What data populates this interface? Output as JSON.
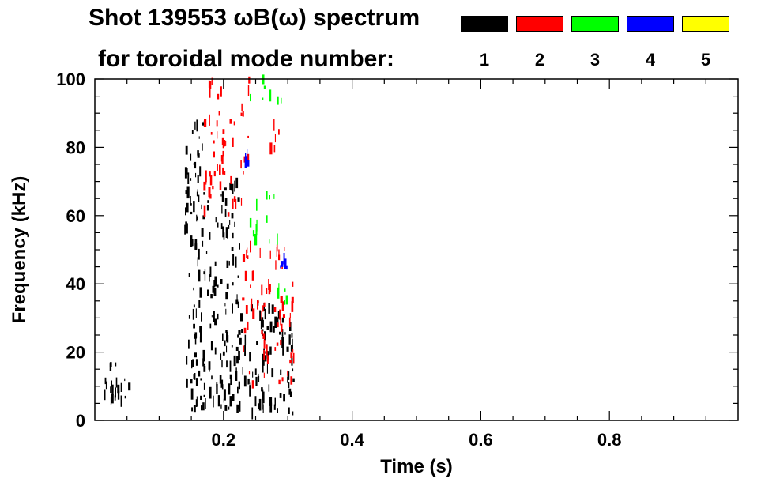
{
  "title": {
    "line1": "Shot 139553 ωB(ω) spectrum",
    "line2": "for toroidal mode number:"
  },
  "legend": [
    {
      "label": "1",
      "color": "#000000"
    },
    {
      "label": "2",
      "color": "#ff0000"
    },
    {
      "label": "3",
      "color": "#00ff00"
    },
    {
      "label": "4",
      "color": "#0000ff"
    },
    {
      "label": "5",
      "color": "#ffff00"
    }
  ],
  "chart_data": {
    "type": "heatmap",
    "xlabel": "Time (s)",
    "ylabel": "Frequency (kHz)",
    "xlim": [
      0.0,
      1.0
    ],
    "ylim": [
      0,
      100
    ],
    "x_ticks": [
      "0.2",
      "0.4",
      "0.6",
      "0.8"
    ],
    "x_tick_values": [
      0.2,
      0.4,
      0.6,
      0.8
    ],
    "y_ticks": [
      "0",
      "20",
      "40",
      "60",
      "80",
      "100"
    ],
    "y_tick_values": [
      0,
      20,
      40,
      60,
      80,
      100
    ],
    "grid": false,
    "legend_position": "top",
    "regions": [
      {
        "mode": 1,
        "t_range": [
          0.14,
          0.175
        ],
        "f_range": [
          2,
          88
        ],
        "desc": "n=1 dense band"
      },
      {
        "mode": 1,
        "t_range": [
          0.175,
          0.225
        ],
        "f_range": [
          2,
          70
        ]
      },
      {
        "mode": 1,
        "t_range": [
          0.225,
          0.31
        ],
        "f_range": [
          2,
          35
        ]
      },
      {
        "mode": 1,
        "t_range": [
          0.015,
          0.055
        ],
        "f_range": [
          1,
          17
        ]
      },
      {
        "mode": 2,
        "t_range": [
          0.17,
          0.24
        ],
        "f_range": [
          60,
          100
        ]
      },
      {
        "mode": 2,
        "t_range": [
          0.23,
          0.31
        ],
        "f_range": [
          10,
          52
        ]
      },
      {
        "mode": 2,
        "t_range": [
          0.27,
          0.29
        ],
        "f_range": [
          75,
          90
        ]
      },
      {
        "mode": 3,
        "t_range": [
          0.24,
          0.285
        ],
        "f_range": [
          52,
          66
        ]
      },
      {
        "mode": 3,
        "t_range": [
          0.24,
          0.29
        ],
        "f_range": [
          93,
          100
        ]
      },
      {
        "mode": 3,
        "t_range": [
          0.285,
          0.3
        ],
        "f_range": [
          34,
          40
        ]
      },
      {
        "mode": 4,
        "t_range": [
          0.285,
          0.3
        ],
        "f_range": [
          44,
          48
        ]
      },
      {
        "mode": 4,
        "t_range": [
          0.23,
          0.24
        ],
        "f_range": [
          75,
          78
        ]
      }
    ]
  }
}
